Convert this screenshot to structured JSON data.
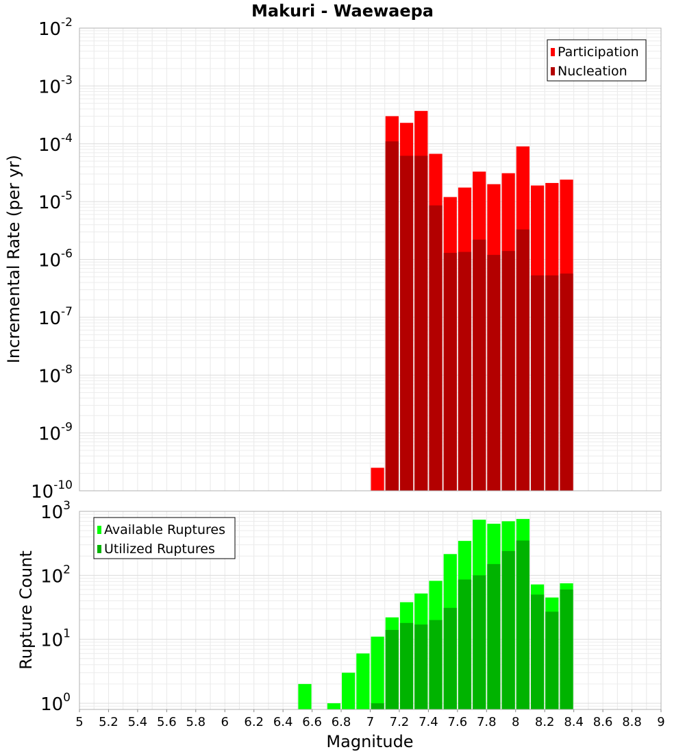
{
  "chart_data": [
    {
      "type": "bar",
      "panel": "top",
      "title": "Makuri - Waewaepa",
      "ylabel": "Incremental Rate (per yr)",
      "yscale": "log",
      "ylim": [
        1e-10,
        0.01
      ],
      "y_ticks": [
        {
          "base": "10",
          "exp": "-10",
          "value": 1e-10
        },
        {
          "base": "10",
          "exp": "-9",
          "value": 1e-09
        },
        {
          "base": "10",
          "exp": "-8",
          "value": 1e-08
        },
        {
          "base": "10",
          "exp": "-7",
          "value": 1e-07
        },
        {
          "base": "10",
          "exp": "-6",
          "value": 1e-06
        },
        {
          "base": "10",
          "exp": "-5",
          "value": 1e-05
        },
        {
          "base": "10",
          "exp": "-4",
          "value": 0.0001
        },
        {
          "base": "10",
          "exp": "-3",
          "value": 0.001
        },
        {
          "base": "10",
          "exp": "-2",
          "value": 0.01
        }
      ],
      "grid": true,
      "legend_position": "top-right",
      "series": [
        {
          "name": "Participation",
          "color": "#ff0000",
          "x": [
            7.05,
            7.15,
            7.25,
            7.35,
            7.45,
            7.55,
            7.65,
            7.75,
            7.85,
            7.95,
            8.05,
            8.15,
            8.25,
            8.35
          ],
          "values": [
            2.5e-10,
            0.0003,
            0.00023,
            0.00037,
            6.7e-05,
            1.2e-05,
            1.75e-05,
            3.3e-05,
            2e-05,
            3.1e-05,
            9e-05,
            1.9e-05,
            2.1e-05,
            2.4e-05
          ]
        },
        {
          "name": "Nucleation",
          "color": "#b30000",
          "x": [
            7.15,
            7.25,
            7.35,
            7.45,
            7.55,
            7.65,
            7.75,
            7.85,
            7.95,
            8.05,
            8.15,
            8.25,
            8.35
          ],
          "values": [
            0.00011,
            6.2e-05,
            6.2e-05,
            8.6e-06,
            1.3e-06,
            1.35e-06,
            2.2e-06,
            1.2e-06,
            1.4e-06,
            3.3e-06,
            5.3e-07,
            5.3e-07,
            5.7e-07
          ]
        }
      ]
    },
    {
      "type": "bar",
      "panel": "bottom",
      "xlabel": "Magnitude",
      "ylabel": "Rupture Count",
      "yscale": "log",
      "ylim": [
        0.8,
        1000
      ],
      "xlim": [
        5,
        9
      ],
      "x_ticks": [
        "5",
        "5.2",
        "5.4",
        "5.6",
        "5.8",
        "6",
        "6.2",
        "6.4",
        "6.6",
        "6.8",
        "7",
        "7.2",
        "7.4",
        "7.6",
        "7.8",
        "8",
        "8.2",
        "8.4",
        "8.6",
        "8.8",
        "9"
      ],
      "y_ticks": [
        {
          "base": "10",
          "exp": "0",
          "value": 1
        },
        {
          "base": "10",
          "exp": "1",
          "value": 10
        },
        {
          "base": "10",
          "exp": "2",
          "value": 100
        },
        {
          "base": "10",
          "exp": "3",
          "value": 1000
        }
      ],
      "grid": true,
      "legend_position": "top-left",
      "series": [
        {
          "name": "Available Ruptures",
          "color": "#00ff00",
          "x": [
            6.55,
            6.75,
            6.85,
            6.95,
            7.05,
            7.15,
            7.25,
            7.35,
            7.45,
            7.55,
            7.65,
            7.75,
            7.85,
            7.95,
            8.05,
            8.15,
            8.25,
            8.35
          ],
          "values": [
            2,
            1,
            3,
            6,
            11,
            22,
            38,
            52,
            82,
            215,
            345,
            740,
            640,
            700,
            760,
            72,
            45,
            75
          ]
        },
        {
          "name": "Utilized Ruptures",
          "color": "#00b300",
          "x": [
            7.05,
            7.15,
            7.25,
            7.35,
            7.45,
            7.55,
            7.65,
            7.75,
            7.85,
            7.95,
            8.05,
            8.15,
            8.25,
            8.35
          ],
          "values": [
            1,
            14,
            18,
            17,
            20,
            31,
            86,
            100,
            150,
            240,
            350,
            50,
            27,
            60
          ]
        }
      ]
    }
  ]
}
